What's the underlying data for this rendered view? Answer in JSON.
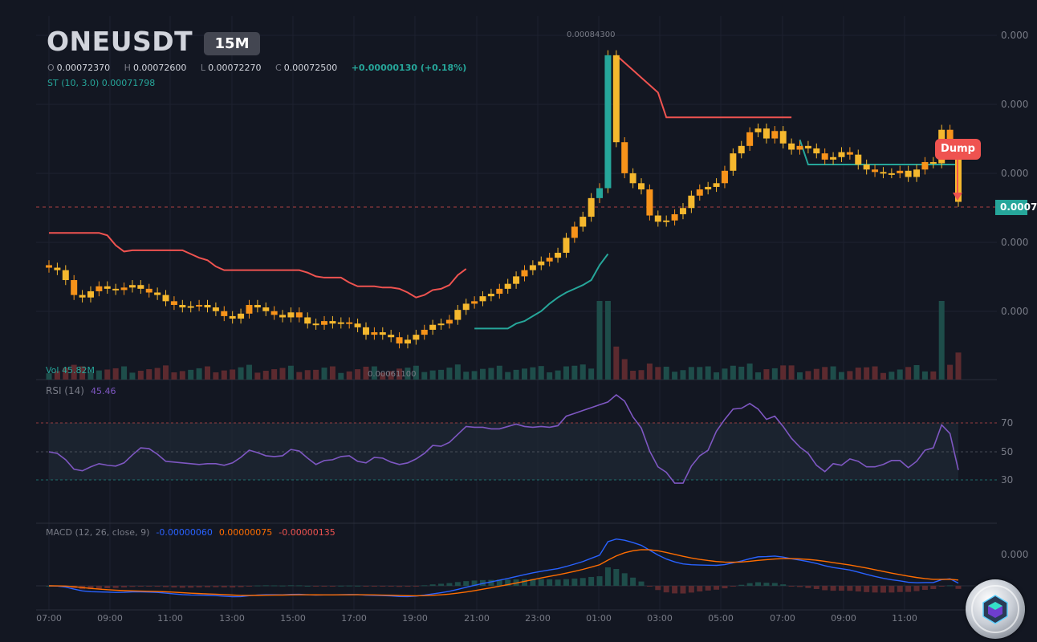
{
  "header": {
    "symbol": "ONEUSDT",
    "timeframe": "15M",
    "ohlc": {
      "o_label": "O",
      "o": "0.00072370",
      "h_label": "H",
      "h": "0.00072600",
      "l_label": "L",
      "l": "0.00072270",
      "c_label": "C",
      "c": "0.00072500",
      "change": "+0.00000130 (+0.18%)"
    },
    "supertrend": "ST (10, 3.0)  0.00071798"
  },
  "price_axis": {
    "ticks": [
      "0.000",
      "0.000",
      "0.000",
      "0.000",
      "0.000"
    ],
    "last_price": "0.0007"
  },
  "annotations": {
    "high": "0.00084300",
    "low": "0.00061100",
    "dump": "Dump"
  },
  "volume": {
    "legend": "Vol  45.82M"
  },
  "rsi": {
    "legend": "RSI (14)",
    "value": "45.46",
    "levels": [
      "70",
      "50",
      "30"
    ]
  },
  "macd": {
    "legend": "MACD (12, 26, close, 9)",
    "macd": "-0.00000060",
    "signal": "0.00000075",
    "hist": "-0.00000135",
    "tick": "0.000"
  },
  "time_axis": [
    "07:00",
    "09:00",
    "11:00",
    "13:00",
    "15:00",
    "17:00",
    "19:00",
    "21:00",
    "23:00",
    "01:00",
    "03:00",
    "05:00",
    "07:00",
    "09:00",
    "11:00"
  ],
  "colors": {
    "bg": "#131722",
    "up": "#26a69a",
    "down": "#ef5350",
    "candle_body": "#f5b82e",
    "candle_alt": "#f7931a",
    "rsi": "#7e57c2",
    "macd": "#2962ff",
    "signal": "#ff6d00"
  },
  "chart_data": {
    "type": "candlestick",
    "interval": "15m",
    "close": [
      0.000672,
      0.00067,
      0.000662,
      0.00065,
      0.000648,
      0.000653,
      0.000657,
      0.000655,
      0.000654,
      0.000656,
      0.000658,
      0.000655,
      0.000652,
      0.00065,
      0.000645,
      0.000642,
      0.00064,
      0.000641,
      0.000642,
      0.00064,
      0.000637,
      0.000633,
      0.000631,
      0.000635,
      0.000642,
      0.00064,
      0.000637,
      0.000634,
      0.000632,
      0.000636,
      0.000632,
      0.000627,
      0.000626,
      0.000629,
      0.000627,
      0.000628,
      0.000627,
      0.000624,
      0.000618,
      0.00062,
      0.000618,
      0.000616,
      0.000611,
      0.000614,
      0.000618,
      0.000622,
      0.000626,
      0.000627,
      0.00063,
      0.000638,
      0.000643,
      0.000645,
      0.000649,
      0.000651,
      0.000655,
      0.000659,
      0.000665,
      0.00067,
      0.000674,
      0.000677,
      0.00068,
      0.000684,
      0.000696,
      0.000705,
      0.000713,
      0.000728,
      0.000736,
      0.000843,
      0.000773,
      0.000748,
      0.00074,
      0.000735,
      0.000714,
      0.000709,
      0.00071,
      0.000715,
      0.00072,
      0.00073,
      0.000735,
      0.000737,
      0.00074,
      0.00075,
      0.000764,
      0.00077,
      0.000781,
      0.000784,
      0.000776,
      0.000782,
      0.000772,
      0.000767,
      0.00077,
      0.000768,
      0.000764,
      0.000759,
      0.000761,
      0.000765,
      0.000763,
      0.000755,
      0.000751,
      0.000749,
      0.000748,
      0.000748,
      0.00075,
      0.000745,
      0.000751,
      0.000757,
      0.000756,
      0.000783,
      0.000771,
      0.000725
    ],
    "volume_peak": "45.82M",
    "ylabel": ""
  }
}
